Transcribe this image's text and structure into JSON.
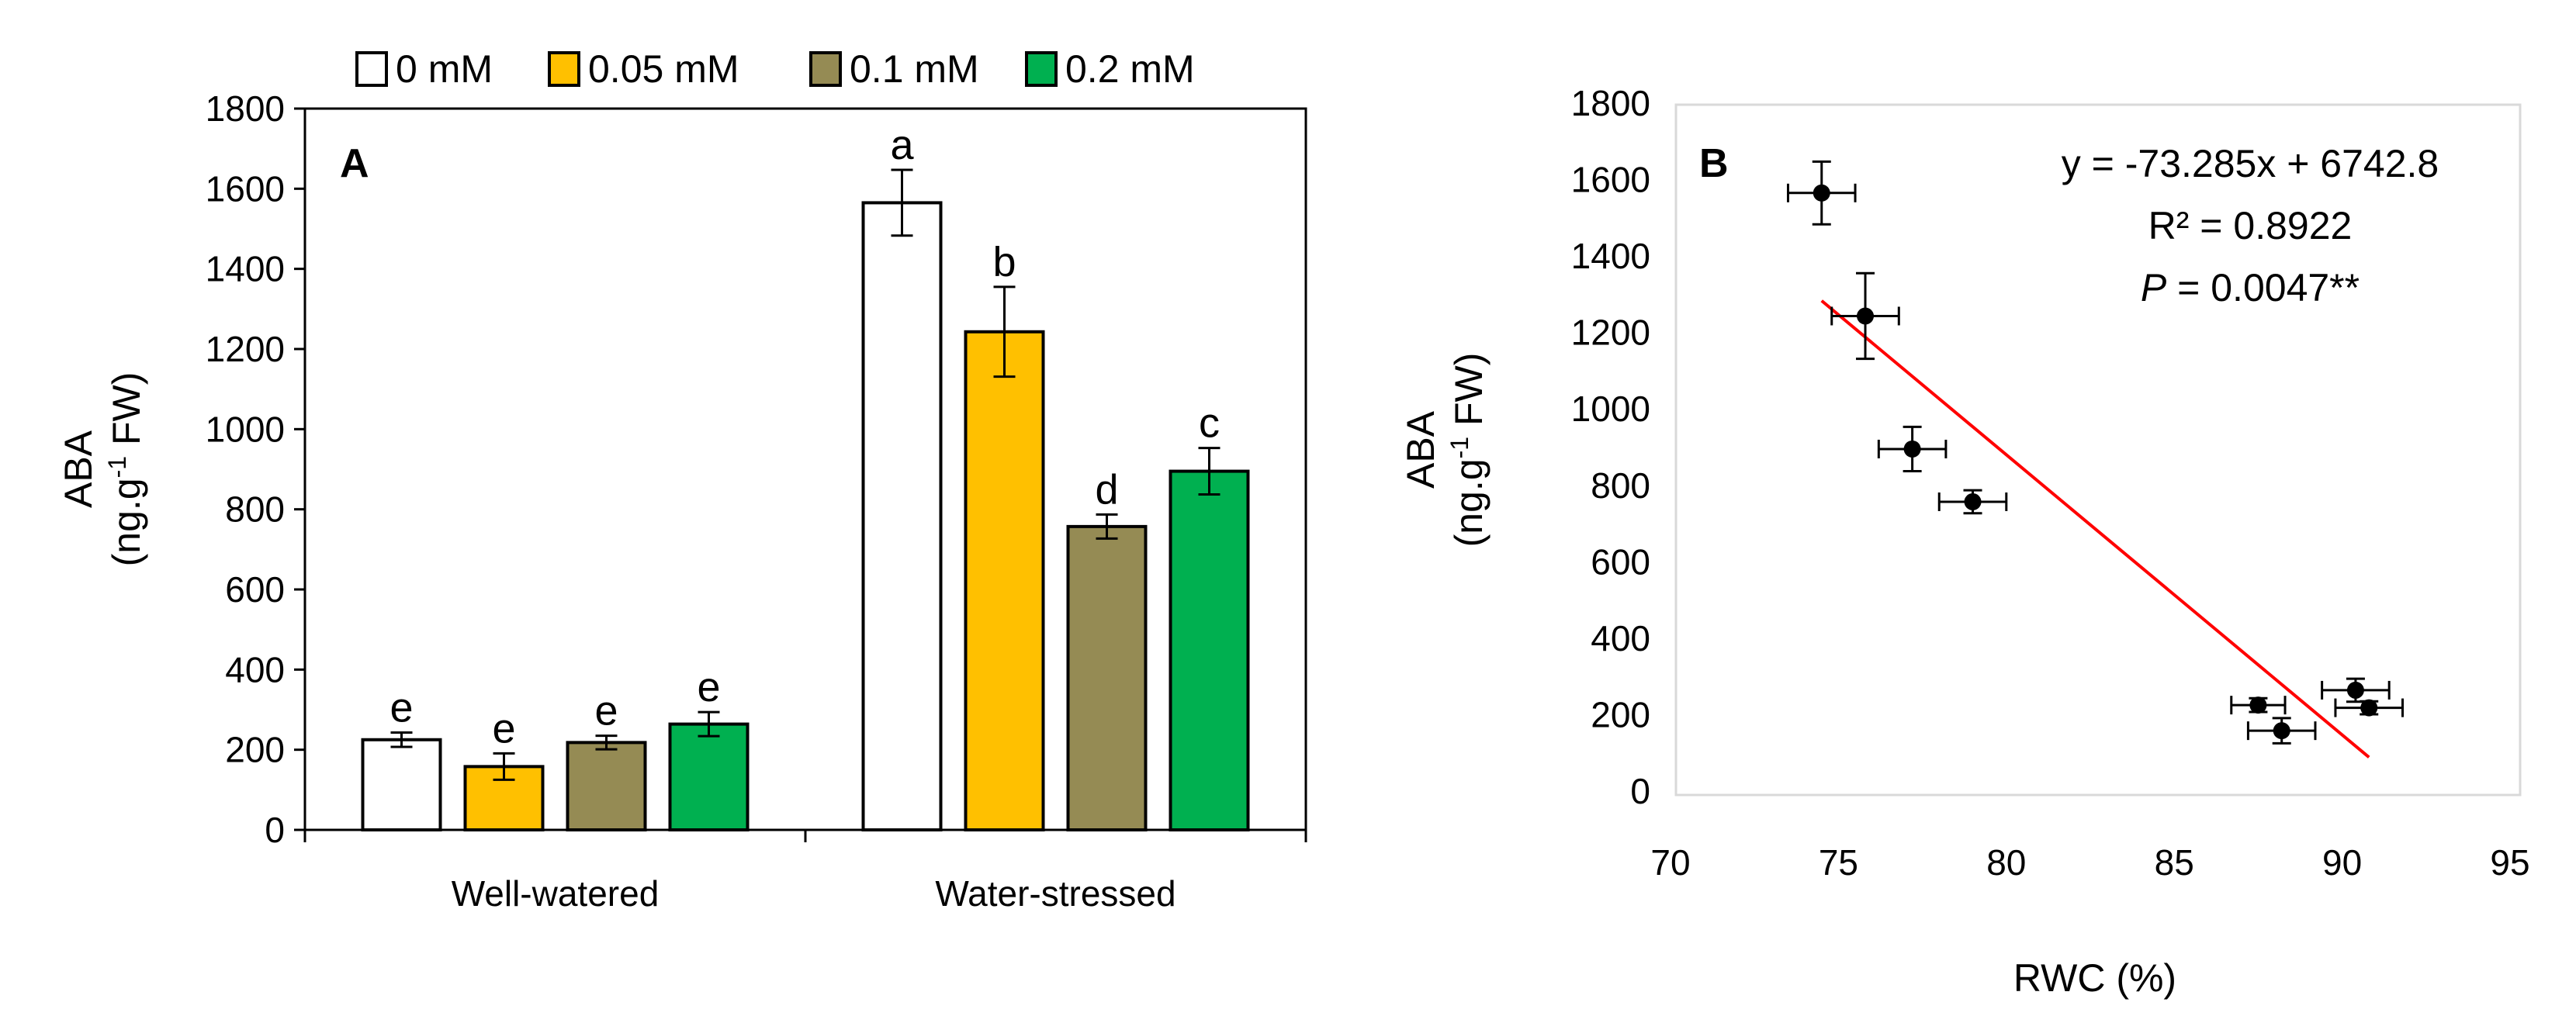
{
  "chart_data": [
    {
      "type": "bar",
      "panel_label": "A",
      "categories": [
        "Well-watered",
        "Water-stressed"
      ],
      "series": [
        {
          "name": "0 mM",
          "color": "#ffffff",
          "values": [
            225,
            1565
          ],
          "errors": [
            18,
            82
          ],
          "letters": [
            "e",
            "a"
          ]
        },
        {
          "name": "0.05 mM",
          "color": "#ffc000",
          "values": [
            158,
            1243
          ],
          "errors": [
            33,
            112
          ],
          "letters": [
            "e",
            "b"
          ]
        },
        {
          "name": "0.1 mM",
          "color": "#958b54",
          "values": [
            218,
            757
          ],
          "errors": [
            17,
            30
          ],
          "letters": [
            "e",
            "d"
          ]
        },
        {
          "name": "0.2 mM",
          "color": "#00b050",
          "values": [
            264,
            895
          ],
          "errors": [
            30,
            58
          ],
          "letters": [
            "e",
            "c"
          ]
        }
      ],
      "ylabel_line1": "ABA",
      "ylabel_line2": "(ng.g",
      "ylabel_sup": "-1",
      "ylabel_line2_end": " FW)",
      "ylim": [
        0,
        1800
      ],
      "yticks": [
        "0",
        "200",
        "400",
        "600",
        "800",
        "1000",
        "1200",
        "1400",
        "1600",
        "1800"
      ],
      "legend_position": "top"
    },
    {
      "type": "scatter",
      "panel_label": "B",
      "points": [
        {
          "x": 74.5,
          "y": 1565,
          "xerr": 1.0,
          "yerr": 82
        },
        {
          "x": 75.8,
          "y": 1243,
          "xerr": 1.0,
          "yerr": 112
        },
        {
          "x": 77.2,
          "y": 895,
          "xerr": 1.0,
          "yerr": 58
        },
        {
          "x": 79.0,
          "y": 757,
          "xerr": 1.0,
          "yerr": 30
        },
        {
          "x": 87.5,
          "y": 225,
          "xerr": 0.8,
          "yerr": 18
        },
        {
          "x": 88.2,
          "y": 158,
          "xerr": 1.0,
          "yerr": 33
        },
        {
          "x": 90.4,
          "y": 264,
          "xerr": 1.0,
          "yerr": 30
        },
        {
          "x": 90.8,
          "y": 218,
          "xerr": 1.0,
          "yerr": 17
        }
      ],
      "trendline": {
        "slope": -73.285,
        "intercept": 6742.8,
        "x_range": [
          74.5,
          90.8
        ],
        "color": "#ff0000"
      },
      "equation": "y = -73.285x + 6742.8",
      "r2_label": "R² = 0.8922",
      "p_label_italic": "P",
      "p_label_rest": " = 0.0047**",
      "xlabel": "RWC (%)",
      "ylabel_line1": "ABA",
      "ylabel_line2": "(ng.g",
      "ylabel_sup": "-1",
      "ylabel_line2_end": " FW)",
      "xlim": [
        70,
        95
      ],
      "ylim": [
        0,
        1800
      ],
      "xticks": [
        "70",
        "75",
        "80",
        "85",
        "90",
        "95"
      ],
      "yticks": [
        "0",
        "200",
        "400",
        "600",
        "800",
        "1000",
        "1200",
        "1400",
        "1600",
        "1800"
      ]
    }
  ]
}
